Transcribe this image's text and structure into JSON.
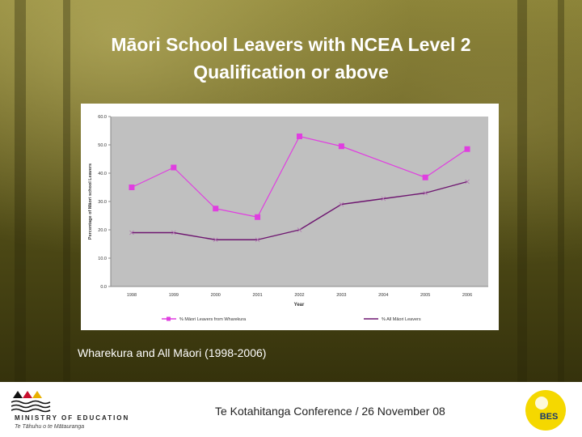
{
  "slide": {
    "title_line1": "Māori School Leavers with NCEA Level 2",
    "title_line2": "Qualification or above",
    "caption": "Wharekura and All Māori (1998-2006)"
  },
  "footer": {
    "ministry_name": "MINISTRY OF EDUCATION",
    "ministry_subtitle": "Te Tāhuhu o te Mātauranga",
    "conference_text": "Te Kotahitanga Conference / 26 November 08",
    "bes_logo_text": "BES"
  },
  "chart_data": {
    "type": "line",
    "xlabel": "Year",
    "ylabel": "Percentage of Māori school Leavers",
    "ylim": [
      0,
      60
    ],
    "yticks": [
      "0.0",
      "10.0",
      "20.0",
      "30.0",
      "40.0",
      "50.0",
      "60.0"
    ],
    "categories": [
      "1998",
      "1999",
      "2000",
      "2001",
      "2002",
      "2003",
      "2004",
      "2005",
      "2006"
    ],
    "series": [
      {
        "name": "% Māori Leavers from Wharekura",
        "color": "#e03ee0",
        "values": [
          35.0,
          42.0,
          27.5,
          24.5,
          53.0,
          49.5,
          null,
          38.5,
          48.5
        ],
        "marker": "square"
      },
      {
        "name": "% All Māori Leavers",
        "color": "#6e1670",
        "values": [
          19.0,
          19.0,
          16.5,
          16.5,
          20.0,
          29.0,
          31.0,
          33.0,
          37.0
        ],
        "marker": "x"
      }
    ],
    "legend": "bottom",
    "grid": false
  },
  "colors": {
    "background": "#5a5420",
    "chart_plot_area": "#c0c0c0",
    "wharekura_series": "#e03ee0",
    "all_maori_series": "#6e1670"
  }
}
